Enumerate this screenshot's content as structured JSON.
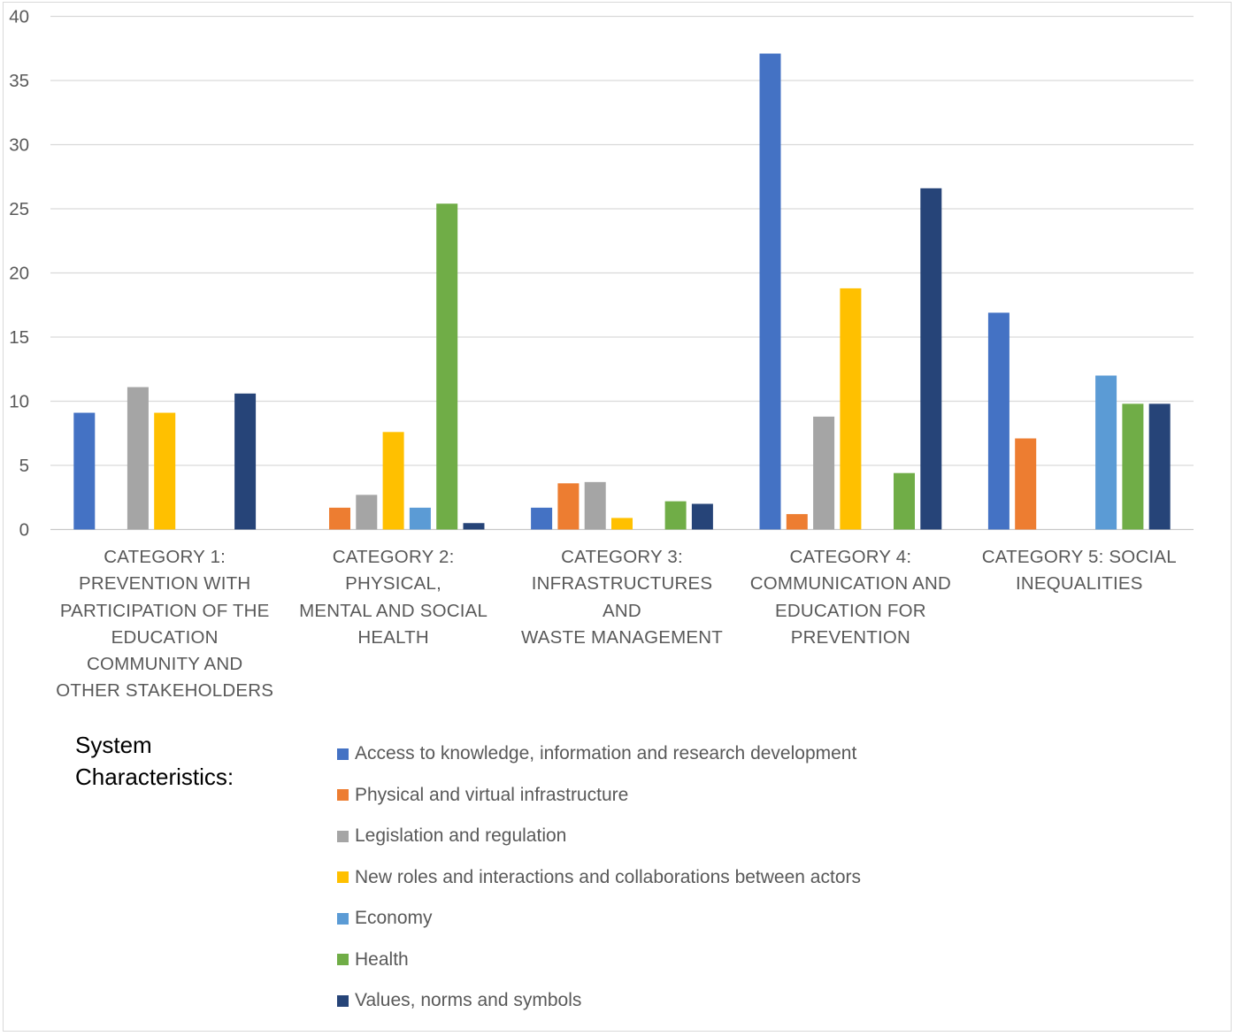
{
  "chart_data": {
    "type": "bar",
    "title": "",
    "xlabel": "",
    "ylabel": "",
    "ylim": [
      0,
      40
    ],
    "yticks": [
      0,
      5,
      10,
      15,
      20,
      25,
      30,
      35,
      40
    ],
    "grid": true,
    "categories": [
      [
        "CATEGORY 1:",
        "PREVENTION WITH",
        "PARTICIPATION OF THE",
        "EDUCATION",
        "COMMUNITY AND",
        "OTHER STAKEHOLDERS"
      ],
      [
        "CATEGORY 2: PHYSICAL,",
        "MENTAL AND SOCIAL",
        "HEALTH"
      ],
      [
        "CATEGORY 3:",
        "INFRASTRUCTURES AND",
        "WASTE MANAGEMENT"
      ],
      [
        "CATEGORY 4:",
        "COMMUNICATION AND",
        "EDUCATION FOR",
        "PREVENTION"
      ],
      [
        "CATEGORY 5: SOCIAL",
        "INEQUALITIES"
      ]
    ],
    "series": [
      {
        "name": "Access to knowledge, information and research development",
        "color": "#4472c4",
        "values": [
          9.1,
          0,
          1.7,
          37.1,
          16.9
        ]
      },
      {
        "name": "Physical and virtual infrastructure",
        "color": "#ed7d31",
        "values": [
          0,
          1.7,
          3.6,
          1.2,
          7.1
        ]
      },
      {
        "name": "Legislation and regulation",
        "color": "#a5a5a5",
        "values": [
          11.1,
          2.7,
          3.7,
          8.8,
          0
        ]
      },
      {
        "name": "New roles and interactions and collaborations between actors",
        "color": "#ffc000",
        "values": [
          9.1,
          7.6,
          0.9,
          18.8,
          0
        ]
      },
      {
        "name": "Economy",
        "color": "#5b9bd5",
        "values": [
          0,
          1.7,
          0,
          0,
          12.0
        ]
      },
      {
        "name": "Health",
        "color": "#70ad47",
        "values": [
          0,
          25.4,
          2.2,
          4.4,
          9.8
        ]
      },
      {
        "name": "Values, norms and symbols",
        "color": "#264478",
        "values": [
          10.6,
          0.5,
          2.0,
          26.6,
          9.8
        ]
      }
    ]
  },
  "legend": {
    "heading_line1": "System",
    "heading_line2": "Characteristics:"
  }
}
